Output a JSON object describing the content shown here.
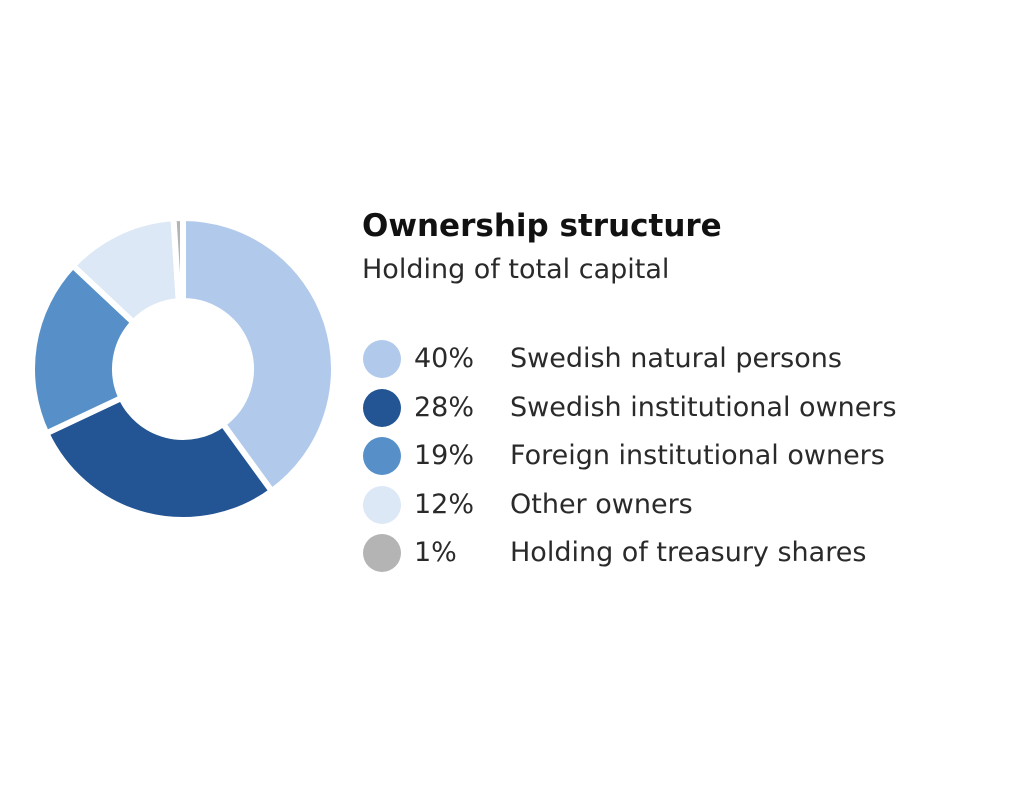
{
  "chart_data": {
    "type": "pie",
    "style": "donut",
    "title": "Ownership structure",
    "subtitle": "Holding of total capital",
    "legend_placement": "right",
    "slices": [
      {
        "value_label": "40%",
        "label": "Swedish natural persons",
        "value": 40,
        "color": "#b1c9eb"
      },
      {
        "value_label": "28%",
        "label": "Swedish institutional owners",
        "value": 28,
        "color": "#235493"
      },
      {
        "value_label": "19%",
        "label": "Foreign institutional owners",
        "value": 19,
        "color": "#5790c8"
      },
      {
        "value_label": "12%",
        "label": "Other owners",
        "value": 12,
        "color": "#dce8f6"
      },
      {
        "value_label": "1%",
        "label": "Holding of treasury shares",
        "value": 1,
        "color": "#b4b4b4"
      }
    ]
  }
}
